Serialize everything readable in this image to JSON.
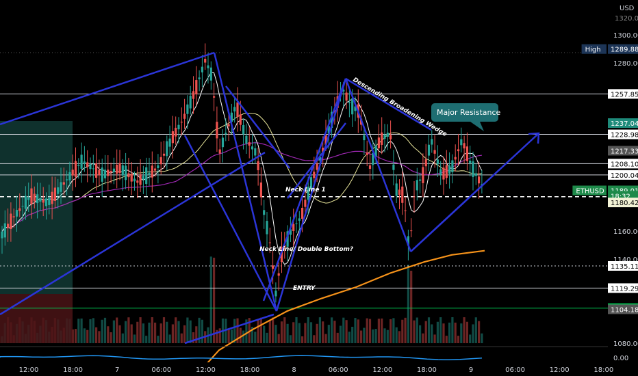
{
  "chart_data": {
    "type": "candlestick",
    "symbol": "ETHUSD",
    "currency": "USD",
    "price_axis": {
      "ticks": [
        1300.0,
        1280.0,
        1160.0,
        1140.0,
        1080.0
      ],
      "top_tick": "1320.00",
      "range": [
        1060,
        1325
      ]
    },
    "time_axis": {
      "labels": [
        "12:00",
        "18:00",
        "7",
        "06:00",
        "12:00",
        "18:00",
        "8",
        "06:00",
        "12:00",
        "18:00",
        "9",
        "06:00",
        "12:00",
        "18:00"
      ]
    },
    "price_tags": [
      {
        "label": "High",
        "value": "1289.88",
        "price": 1289.88,
        "style": "high"
      },
      {
        "value": "1257.85",
        "price": 1257.85,
        "style": "white"
      },
      {
        "value": "1237.04",
        "price": 1237.04,
        "style": "teal"
      },
      {
        "value": "1228.98",
        "price": 1228.98,
        "style": "white"
      },
      {
        "value": "1217.33",
        "price": 1217.33,
        "style": "gray"
      },
      {
        "value": "1208.10",
        "price": 1208.1,
        "style": "white"
      },
      {
        "value": "1200.04",
        "price": 1200.04,
        "style": "white"
      },
      {
        "label": "ETHUSD",
        "value": "1189.01",
        "price": 1189.01,
        "style": "green"
      },
      {
        "value": "18:32",
        "price": 1185.2,
        "style": "countdown"
      },
      {
        "value": "1180.42",
        "price": 1180.42,
        "style": "light"
      },
      {
        "value": "1135.11",
        "price": 1135.11,
        "style": "white"
      },
      {
        "value": "1119.29",
        "price": 1119.29,
        "style": "white"
      },
      {
        "value": "1105.00",
        "price": 1105.0,
        "style": "green-solid"
      },
      {
        "value": "1104.18",
        "price": 1104.18,
        "style": "gray"
      }
    ],
    "horizontal_levels": [
      {
        "price": 1257.85,
        "style": "solid",
        "color": "#d1d4dc"
      },
      {
        "price": 1228.98,
        "style": "solid",
        "color": "#d1d4dc"
      },
      {
        "price": 1208.1,
        "style": "solid",
        "color": "#d1d4dc"
      },
      {
        "price": 1200.04,
        "style": "solid",
        "color": "#d1d4dc"
      },
      {
        "price": 1184.5,
        "style": "dashed",
        "color": "#ffffff"
      },
      {
        "price": 1135.11,
        "style": "dotted",
        "color": "#d1d4dc"
      },
      {
        "price": 1119.29,
        "style": "solid",
        "color": "#d1d4dc"
      },
      {
        "price": 1105.0,
        "style": "solid",
        "color": "#00c853"
      }
    ],
    "annotations": [
      {
        "text": "Descending Broadening Wedge"
      },
      {
        "text": "Neck Line 1"
      },
      {
        "text": "Neck Line/ Double Bottom?"
      },
      {
        "text": "ENTRY"
      },
      {
        "text": "Major Resistance"
      }
    ],
    "oscillator_label": "0.00",
    "colors": {
      "up": "#26a69a",
      "down": "#ef5350",
      "pattern": "#2b35d8",
      "ma_long": "#f7931a",
      "ma_mid": "#9c27b0",
      "ma_fast": "#ffffff",
      "ma_yellow": "#e8e59a",
      "oscillator": "#2196f3"
    }
  }
}
